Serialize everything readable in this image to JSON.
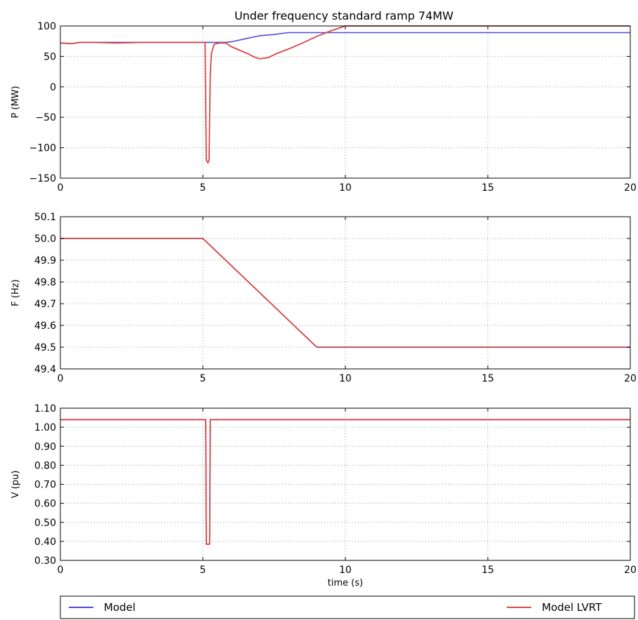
{
  "title": "Under frequency standard ramp 74MW",
  "legend": [
    {
      "label": "Model",
      "color": "#4a4adb"
    },
    {
      "label": "Model LVRT",
      "color": "#d94545"
    }
  ],
  "chart_data": [
    {
      "type": "line",
      "title": "Under frequency standard ramp 74MW",
      "xlabel": "",
      "ylabel": "P (MW)",
      "xlim": [
        0,
        20
      ],
      "ylim": [
        -150,
        100
      ],
      "xticks": [
        0,
        5,
        10,
        15,
        20
      ],
      "yticks": [
        -150,
        -100,
        -50,
        0,
        50,
        100
      ],
      "ytick_labels": [
        "−150",
        "−100",
        "−50",
        "0",
        "50",
        "100"
      ],
      "grid": true,
      "series": [
        {
          "name": "Model",
          "color": "#4a4adb",
          "x": [
            0,
            0.4,
            0.7,
            1.0,
            2.0,
            3.0,
            4.0,
            5.0,
            5.5,
            5.8,
            6.0,
            6.5,
            7.0,
            7.5,
            8.0,
            10.0,
            20.0
          ],
          "y": [
            72,
            71,
            73,
            73,
            73,
            73,
            73,
            73,
            73,
            73,
            74,
            79,
            84,
            86,
            89,
            89,
            89
          ]
        },
        {
          "name": "Model LVRT",
          "color": "#d94545",
          "x": [
            0,
            0.4,
            0.7,
            1.0,
            2.0,
            3.0,
            4.0,
            5.0,
            5.08,
            5.12,
            5.18,
            5.22,
            5.26,
            5.3,
            5.4,
            5.6,
            5.8,
            6.0,
            6.2,
            6.4,
            6.6,
            6.8,
            7.0,
            7.3,
            7.6,
            8.0,
            8.5,
            9.0,
            9.5,
            10.0,
            20.0
          ],
          "y": [
            72,
            71,
            73,
            73,
            72,
            73,
            73,
            73,
            73,
            -120,
            -125,
            -120,
            20,
            55,
            70,
            72,
            72,
            66,
            62,
            58,
            54,
            49,
            46,
            48,
            55,
            62,
            72,
            83,
            92,
            100,
            100
          ]
        }
      ]
    },
    {
      "type": "line",
      "xlabel": "",
      "ylabel": "F (Hz)",
      "xlim": [
        0,
        20
      ],
      "ylim": [
        49.4,
        50.1
      ],
      "xticks": [
        0,
        5,
        10,
        15,
        20
      ],
      "yticks": [
        49.4,
        49.5,
        49.6,
        49.7,
        49.8,
        49.9,
        50.0,
        50.1
      ],
      "ytick_labels": [
        "49.4",
        "49.5",
        "49.6",
        "49.7",
        "49.8",
        "49.9",
        "50.0",
        "50.1"
      ],
      "grid": true,
      "series": [
        {
          "name": "Model",
          "color": "#4a4adb",
          "x": [
            0,
            5.0,
            9.0,
            20.0
          ],
          "y": [
            50.0,
            50.0,
            49.5,
            49.5
          ]
        },
        {
          "name": "Model LVRT",
          "color": "#d94545",
          "x": [
            0,
            5.0,
            9.0,
            20.0
          ],
          "y": [
            50.0,
            50.0,
            49.5,
            49.5
          ]
        }
      ]
    },
    {
      "type": "line",
      "xlabel": "time (s)",
      "ylabel": "V (pu)",
      "xlim": [
        0,
        20
      ],
      "ylim": [
        0.3,
        1.1
      ],
      "xticks": [
        0,
        5,
        10,
        15,
        20
      ],
      "yticks": [
        0.3,
        0.4,
        0.5,
        0.6,
        0.7,
        0.8,
        0.9,
        1.0,
        1.1
      ],
      "ytick_labels": [
        "0.30",
        "0.40",
        "0.50",
        "0.60",
        "0.70",
        "0.80",
        "0.90",
        "1.00",
        "1.10"
      ],
      "grid": true,
      "series": [
        {
          "name": "Model",
          "color": "#4a4adb",
          "x": [
            0,
            5.1,
            5.12,
            5.24,
            5.26,
            20.0
          ],
          "y": [
            1.04,
            1.04,
            0.385,
            0.385,
            1.04,
            1.04
          ]
        },
        {
          "name": "Model LVRT",
          "color": "#d94545",
          "x": [
            0,
            5.1,
            5.12,
            5.24,
            5.26,
            20.0
          ],
          "y": [
            1.04,
            1.04,
            0.385,
            0.385,
            1.04,
            1.04
          ]
        }
      ]
    }
  ]
}
